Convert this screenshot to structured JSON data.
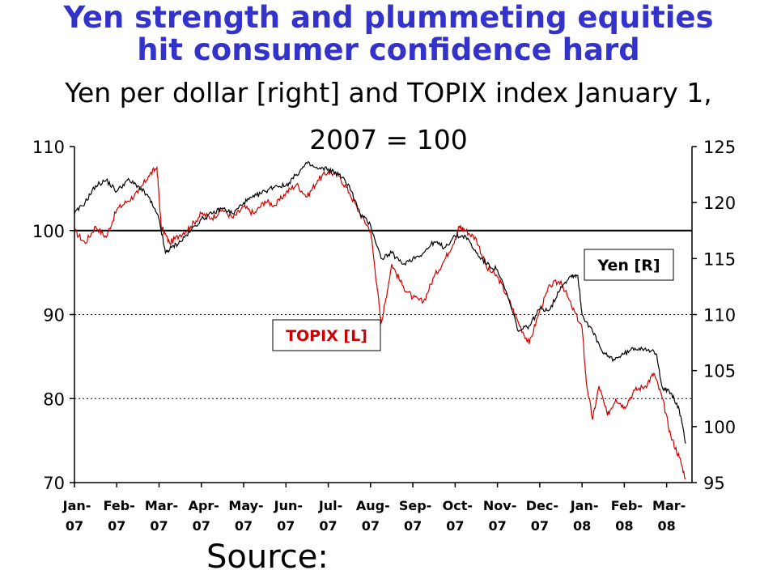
{
  "title_line1": "Yen strength and plummeting equities",
  "title_line2": "hit consumer confidence hard",
  "subtitle": "Yen per dollar [right] and TOPIX index January 1, 2007 = 100",
  "source_label": "Source:",
  "colors": {
    "title": "#3333cc",
    "topix": "#cc0000",
    "yen": "#000000"
  },
  "chart_data": {
    "type": "line",
    "title": "Yen per dollar [right] and TOPIX index January 1, 2007 = 100",
    "x_ticks": [
      [
        "Jan-",
        "07"
      ],
      [
        "Feb-",
        "07"
      ],
      [
        "Mar-",
        "07"
      ],
      [
        "Apr-",
        "07"
      ],
      [
        "May-",
        "07"
      ],
      [
        "Jun-",
        "07"
      ],
      [
        "Jul-",
        "07"
      ],
      [
        "Aug-",
        "07"
      ],
      [
        "Sep-",
        "07"
      ],
      [
        "Oct-",
        "07"
      ],
      [
        "Nov-",
        "07"
      ],
      [
        "Dec-",
        "07"
      ],
      [
        "Jan-",
        "08"
      ],
      [
        "Feb-",
        "08"
      ],
      [
        "Mar-",
        "08"
      ]
    ],
    "y_left": {
      "min": 70,
      "max": 110,
      "ticks": [
        70,
        80,
        90,
        100,
        110
      ]
    },
    "y_right": {
      "min": 95,
      "max": 125,
      "ticks": [
        95,
        100,
        105,
        110,
        115,
        120,
        125
      ]
    },
    "reference_line": 100,
    "gridlines": [
      80,
      90
    ],
    "series": [
      {
        "name": "TOPIX [L]",
        "axis": "left",
        "color": "#cc0000",
        "points": [
          [
            0.0,
            100.0
          ],
          [
            0.25,
            98.5
          ],
          [
            0.5,
            100.5
          ],
          [
            0.75,
            99.2
          ],
          [
            1.0,
            102.5
          ],
          [
            1.25,
            103.5
          ],
          [
            1.5,
            104.5
          ],
          [
            1.75,
            106.5
          ],
          [
            1.95,
            107.5
          ],
          [
            2.05,
            100.5
          ],
          [
            2.25,
            98.5
          ],
          [
            2.5,
            99.5
          ],
          [
            2.75,
            100.5
          ],
          [
            3.0,
            102.0
          ],
          [
            3.25,
            101.5
          ],
          [
            3.5,
            102.5
          ],
          [
            3.75,
            101.5
          ],
          [
            4.0,
            102.8
          ],
          [
            4.25,
            102.0
          ],
          [
            4.5,
            103.5
          ],
          [
            4.75,
            103.0
          ],
          [
            5.0,
            104.5
          ],
          [
            5.25,
            105.5
          ],
          [
            5.5,
            104.0
          ],
          [
            5.75,
            106.0
          ],
          [
            6.0,
            107.0
          ],
          [
            6.25,
            106.5
          ],
          [
            6.5,
            104.5
          ],
          [
            6.75,
            102.0
          ],
          [
            7.0,
            100.0
          ],
          [
            7.15,
            93.5
          ],
          [
            7.25,
            89.0
          ],
          [
            7.35,
            91.5
          ],
          [
            7.5,
            96.0
          ],
          [
            7.75,
            93.5
          ],
          [
            8.0,
            92.0
          ],
          [
            8.25,
            91.5
          ],
          [
            8.5,
            94.5
          ],
          [
            8.75,
            96.5
          ],
          [
            9.0,
            99.0
          ],
          [
            9.1,
            100.5
          ],
          [
            9.25,
            100.0
          ],
          [
            9.5,
            99.0
          ],
          [
            9.75,
            95.5
          ],
          [
            10.0,
            94.5
          ],
          [
            10.25,
            92.0
          ],
          [
            10.5,
            89.0
          ],
          [
            10.75,
            86.5
          ],
          [
            11.0,
            90.5
          ],
          [
            11.25,
            93.5
          ],
          [
            11.5,
            94.0
          ],
          [
            11.75,
            91.0
          ],
          [
            12.0,
            88.5
          ],
          [
            12.1,
            82.0
          ],
          [
            12.25,
            77.5
          ],
          [
            12.4,
            81.5
          ],
          [
            12.6,
            78.0
          ],
          [
            12.8,
            80.0
          ],
          [
            13.0,
            79.0
          ],
          [
            13.25,
            81.0
          ],
          [
            13.5,
            81.5
          ],
          [
            13.7,
            83.0
          ],
          [
            13.9,
            80.0
          ],
          [
            14.1,
            75.5
          ],
          [
            14.3,
            73.0
          ],
          [
            14.45,
            70.5
          ]
        ]
      },
      {
        "name": "Yen [R]",
        "axis": "right",
        "color": "#000000",
        "points": [
          [
            0.0,
            119.0
          ],
          [
            0.25,
            120.0
          ],
          [
            0.5,
            121.5
          ],
          [
            0.75,
            122.0
          ],
          [
            1.0,
            121.0
          ],
          [
            1.25,
            122.0
          ],
          [
            1.5,
            121.5
          ],
          [
            1.75,
            120.5
          ],
          [
            2.0,
            118.5
          ],
          [
            2.15,
            115.5
          ],
          [
            2.3,
            116.0
          ],
          [
            2.5,
            116.5
          ],
          [
            2.75,
            117.5
          ],
          [
            3.0,
            118.5
          ],
          [
            3.25,
            119.0
          ],
          [
            3.5,
            119.5
          ],
          [
            3.75,
            119.0
          ],
          [
            4.0,
            120.0
          ],
          [
            4.25,
            120.5
          ],
          [
            4.5,
            121.0
          ],
          [
            4.75,
            121.5
          ],
          [
            5.0,
            121.5
          ],
          [
            5.25,
            122.5
          ],
          [
            5.5,
            123.5
          ],
          [
            5.75,
            123.0
          ],
          [
            6.0,
            123.0
          ],
          [
            6.25,
            122.5
          ],
          [
            6.5,
            121.5
          ],
          [
            6.75,
            119.0
          ],
          [
            7.0,
            118.0
          ],
          [
            7.25,
            115.0
          ],
          [
            7.5,
            115.5
          ],
          [
            7.75,
            114.5
          ],
          [
            8.0,
            115.0
          ],
          [
            8.25,
            115.5
          ],
          [
            8.5,
            116.5
          ],
          [
            8.75,
            116.0
          ],
          [
            9.0,
            117.0
          ],
          [
            9.25,
            117.0
          ],
          [
            9.5,
            115.5
          ],
          [
            9.75,
            114.5
          ],
          [
            10.0,
            114.0
          ],
          [
            10.25,
            111.5
          ],
          [
            10.5,
            108.5
          ],
          [
            10.75,
            109.0
          ],
          [
            11.0,
            110.5
          ],
          [
            11.25,
            110.5
          ],
          [
            11.5,
            112.5
          ],
          [
            11.75,
            113.5
          ],
          [
            11.9,
            113.5
          ],
          [
            12.0,
            110.0
          ],
          [
            12.25,
            108.5
          ],
          [
            12.5,
            106.5
          ],
          [
            12.75,
            106.0
          ],
          [
            13.0,
            106.5
          ],
          [
            13.25,
            107.0
          ],
          [
            13.5,
            107.0
          ],
          [
            13.75,
            106.5
          ],
          [
            13.9,
            103.5
          ],
          [
            14.1,
            103.0
          ],
          [
            14.3,
            101.5
          ],
          [
            14.45,
            98.5
          ]
        ]
      }
    ],
    "annotations": [
      {
        "text": "TOPIX [L]",
        "color": "#cc0000"
      },
      {
        "text": "Yen [R]",
        "color": "#000000"
      }
    ]
  }
}
